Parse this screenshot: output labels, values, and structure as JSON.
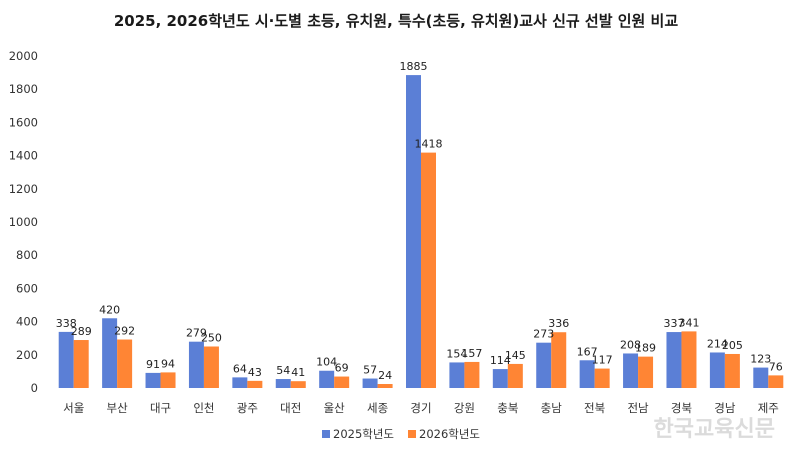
{
  "chart_data": {
    "type": "bar",
    "title": "2025, 2026학년도 시·도별 초등, 유치원, 특수(초등, 유치원)교사 신규 선발 인원 비교",
    "xlabel": "",
    "ylabel": "",
    "ylim": [
      0,
      2000
    ],
    "yticks": [
      0,
      200,
      400,
      600,
      800,
      1000,
      1200,
      1400,
      1600,
      1800,
      2000
    ],
    "grid": false,
    "legend_position": "bottom",
    "categories": [
      "서울",
      "부산",
      "대구",
      "인천",
      "광주",
      "대전",
      "울산",
      "세종",
      "경기",
      "강원",
      "충북",
      "충남",
      "전북",
      "전남",
      "경북",
      "경남",
      "제주"
    ],
    "series": [
      {
        "name": "2025학년도",
        "color": "#5B7FD6",
        "values": [
          338,
          420,
          91,
          279,
          64,
          54,
          104,
          57,
          1885,
          154,
          114,
          273,
          167,
          208,
          337,
          214,
          123
        ]
      },
      {
        "name": "2026학년도",
        "color": "#FF8534",
        "values": [
          289,
          292,
          94,
          250,
          43,
          41,
          69,
          24,
          1418,
          157,
          145,
          336,
          117,
          189,
          341,
          205,
          76
        ]
      }
    ]
  },
  "watermark": "한국교육신문"
}
